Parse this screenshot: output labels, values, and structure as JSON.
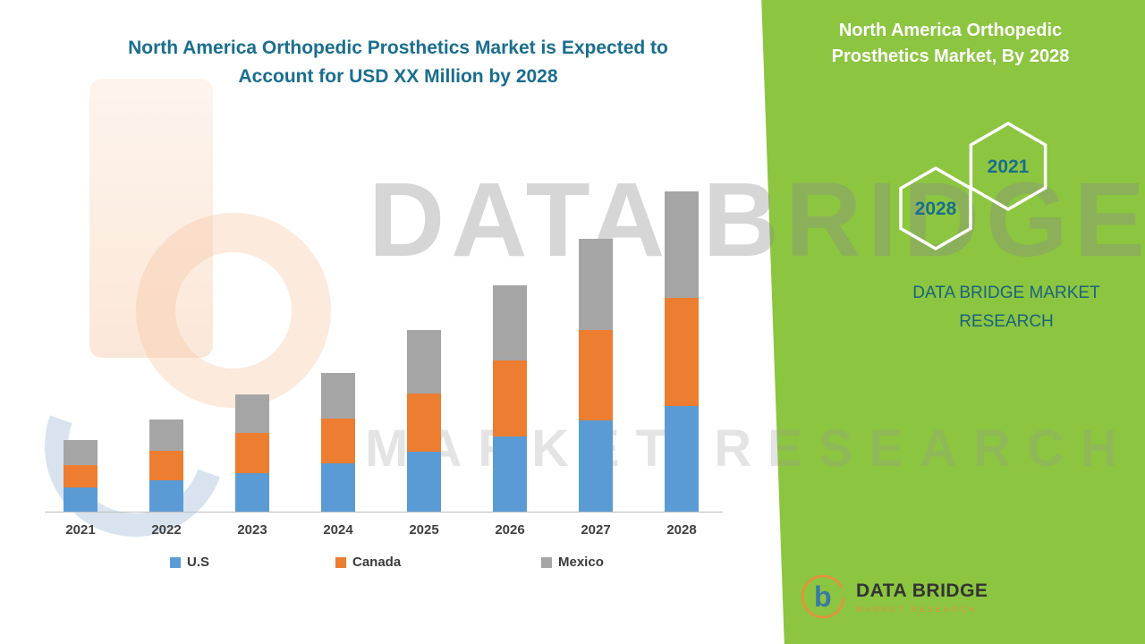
{
  "heading": {
    "line1": "North America Orthopedic Prosthetics Market is Expected to",
    "line2": "Account for USD XX Million by 2028"
  },
  "side_panel": {
    "title_line1": "North America Orthopedic",
    "title_line2": "Prosthetics Market, By 2028",
    "hex_year_left": "2028",
    "hex_year_right": "2021",
    "brand_line1": "DATA BRIDGE MARKET",
    "brand_line2": "RESEARCH"
  },
  "watermark": {
    "line1": "DATA BRIDGE",
    "line2": "MARKET RESEARCH"
  },
  "footer_logo": {
    "brand": "DATA BRIDGE",
    "sub": "MARKET RESEARCH",
    "mark_letter": "b"
  },
  "chart_data": {
    "type": "bar",
    "stacked": true,
    "title": "North America Orthopedic Prosthetics Market is Expected to Account for USD XX Million by 2028",
    "categories": [
      "2021",
      "2022",
      "2023",
      "2024",
      "2025",
      "2026",
      "2027",
      "2028"
    ],
    "series": [
      {
        "name": "U.S",
        "color": "#5B9BD5",
        "values": [
          27,
          35,
          44,
          55,
          68,
          85,
          103,
          120
        ]
      },
      {
        "name": "Canada",
        "color": "#ED7D31",
        "values": [
          26,
          34,
          45,
          50,
          66,
          86,
          103,
          122
        ]
      },
      {
        "name": "Mexico",
        "color": "#A5A5A5",
        "values": [
          28,
          35,
          44,
          52,
          72,
          86,
          103,
          121
        ]
      }
    ],
    "ylim": [
      0,
      370
    ],
    "grid": false,
    "legend_position": "bottom",
    "value_note": "Actual figures masked in source as 'USD XX Million'; series values are relative estimates read from bar heights"
  },
  "colors": {
    "panel_green": "#8CC540",
    "heading_teal": "#1A6E8E",
    "brand_teal": "#19647E",
    "axis_gray": "#BFBFBF",
    "tick_label_gray": "#404040",
    "logo_orange": "#E8913A",
    "logo_blue": "#3A79A5"
  }
}
